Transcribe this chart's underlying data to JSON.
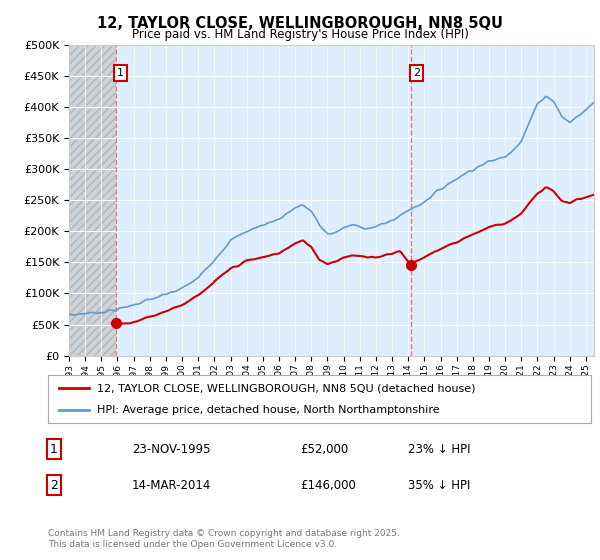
{
  "title": "12, TAYLOR CLOSE, WELLINGBOROUGH, NN8 5QU",
  "subtitle": "Price paid vs. HM Land Registry's House Price Index (HPI)",
  "legend_line1": "12, TAYLOR CLOSE, WELLINGBOROUGH, NN8 5QU (detached house)",
  "legend_line2": "HPI: Average price, detached house, North Northamptonshire",
  "annotation1_date": "23-NOV-1995",
  "annotation1_price": "£52,000",
  "annotation1_hpi": "23% ↓ HPI",
  "annotation2_date": "14-MAR-2014",
  "annotation2_price": "£146,000",
  "annotation2_hpi": "35% ↓ HPI",
  "footer": "Contains HM Land Registry data © Crown copyright and database right 2025.\nThis data is licensed under the Open Government Licence v3.0.",
  "ylim": [
    0,
    500000
  ],
  "yticks": [
    0,
    50000,
    100000,
    150000,
    200000,
    250000,
    300000,
    350000,
    400000,
    450000,
    500000
  ],
  "price_color": "#cc0000",
  "hpi_color": "#6699cc",
  "vline_color": "#e87070",
  "plot_bg_color": "#ddeeff",
  "hatch_bg_color": "#d0d0d0",
  "sale1_x": 1995.9,
  "sale1_y": 52000,
  "sale2_x": 2014.2,
  "sale2_y": 146000,
  "xlim_start": 1993.0,
  "xlim_end": 2025.5
}
